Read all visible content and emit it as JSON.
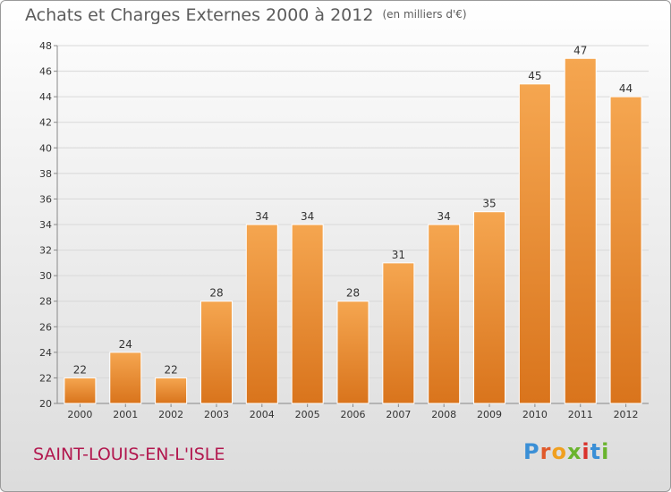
{
  "header": {
    "title": "Achats et Charges Externes 2000 à 2012",
    "unit": "(en milliers d'€)"
  },
  "footer": {
    "commune": "SAINT-LOUIS-EN-L'ISLE",
    "logo_letters": [
      "P",
      "r",
      "o",
      "x",
      "i",
      "t",
      "i"
    ],
    "logo_colors": [
      "#3a8fd6",
      "#e05a2b",
      "#f0a020",
      "#6ab42e",
      "#d9322b",
      "#3a8fd6",
      "#6ab42e"
    ]
  },
  "colors": {
    "bar_top": "#f5a650",
    "bar_bottom": "#d9741c",
    "grid": "#d8d8d8"
  },
  "chart_data": {
    "type": "bar",
    "title": "Achats et Charges Externes 2000 à 2012",
    "subtitle": "(en milliers d'€)",
    "xlabel": "",
    "ylabel": "",
    "categories": [
      "2000",
      "2001",
      "2002",
      "2003",
      "2004",
      "2005",
      "2006",
      "2007",
      "2008",
      "2009",
      "2010",
      "2011",
      "2012"
    ],
    "values": [
      22,
      24,
      22,
      28,
      34,
      34,
      28,
      31,
      34,
      35,
      45,
      47,
      44
    ],
    "ylim": [
      20,
      48
    ],
    "yticks": [
      20,
      22,
      24,
      26,
      28,
      30,
      32,
      34,
      36,
      38,
      40,
      42,
      44,
      46,
      48
    ],
    "grid": true,
    "data_labels": true
  }
}
